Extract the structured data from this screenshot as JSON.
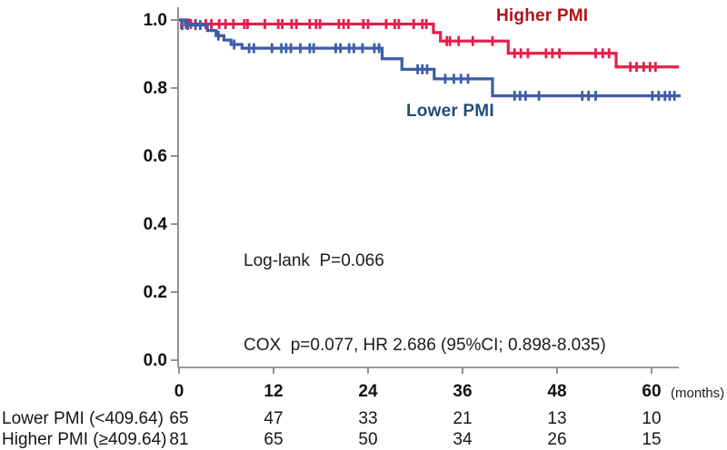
{
  "chart_data": {
    "type": "line",
    "subtype": "kaplan_meier_step_curves",
    "title": "",
    "xlabel": "(months)",
    "ylabel": "",
    "grid": false,
    "axis_color": "#7a7a7a",
    "tick_label_color": "#111111",
    "x_axis": {
      "ticks": [
        0,
        12,
        24,
        36,
        48,
        60
      ],
      "range": [
        0,
        63.5
      ]
    },
    "y_axis": {
      "ticks": [
        1.0,
        0.8,
        0.6,
        0.4,
        0.2,
        0.0
      ],
      "tick_labels": [
        "1.0",
        "0.8",
        "0.6",
        "0.4",
        "0.2",
        "0.0"
      ],
      "range": [
        0.0,
        1.0
      ]
    },
    "annotations": {
      "line1": "Log-lank  P=0.066",
      "line2": "COX  p=0.077, HR 2.686 (95%CI; 0.898-8.035)"
    },
    "series": [
      {
        "name": "Higher PMI",
        "curve_color": "#E3204C",
        "label_color": "#B11318",
        "end_t": 63.5,
        "steps": [
          [
            0,
            1.0
          ],
          [
            1.2,
            0.988
          ],
          [
            32.3,
            0.963
          ],
          [
            33.2,
            0.938
          ],
          [
            41.8,
            0.902
          ],
          [
            55.5,
            0.862
          ]
        ],
        "censors": [
          [
            0.3,
            0.988
          ],
          [
            0.9,
            0.988
          ],
          [
            1.5,
            0.988
          ],
          [
            2.1,
            0.988
          ],
          [
            3.4,
            0.988
          ],
          [
            4.1,
            0.988
          ],
          [
            5.1,
            0.988
          ],
          [
            5.9,
            0.988
          ],
          [
            6.9,
            0.988
          ],
          [
            8.3,
            0.988
          ],
          [
            8.7,
            0.988
          ],
          [
            10.9,
            0.988
          ],
          [
            12.6,
            0.988
          ],
          [
            13.1,
            0.988
          ],
          [
            14.3,
            0.988
          ],
          [
            14.9,
            0.988
          ],
          [
            16.6,
            0.988
          ],
          [
            17.4,
            0.988
          ],
          [
            17.9,
            0.988
          ],
          [
            20.3,
            0.988
          ],
          [
            20.9,
            0.988
          ],
          [
            21.5,
            0.988
          ],
          [
            23.4,
            0.988
          ],
          [
            24.0,
            0.988
          ],
          [
            26.3,
            0.988
          ],
          [
            27.4,
            0.988
          ],
          [
            27.9,
            0.988
          ],
          [
            29.8,
            0.988
          ],
          [
            30.9,
            0.988
          ],
          [
            31.4,
            0.988
          ],
          [
            34.0,
            0.938
          ],
          [
            34.4,
            0.938
          ],
          [
            35.5,
            0.938
          ],
          [
            37.3,
            0.938
          ],
          [
            39.8,
            0.938
          ],
          [
            42.6,
            0.902
          ],
          [
            43.4,
            0.902
          ],
          [
            44.3,
            0.902
          ],
          [
            46.6,
            0.902
          ],
          [
            47.4,
            0.902
          ],
          [
            48.3,
            0.902
          ],
          [
            52.9,
            0.902
          ],
          [
            53.8,
            0.902
          ],
          [
            54.6,
            0.902
          ],
          [
            57.3,
            0.862
          ],
          [
            58.1,
            0.862
          ],
          [
            59.0,
            0.862
          ],
          [
            59.8,
            0.862
          ],
          [
            60.5,
            0.862
          ]
        ]
      },
      {
        "name": "Lower PMI",
        "curve_color": "#3D5DAA",
        "label_color": "#1F4E79",
        "end_t": 63.7,
        "steps": [
          [
            0,
            1.0
          ],
          [
            0.8,
            0.985
          ],
          [
            3.6,
            0.969
          ],
          [
            4.7,
            0.954
          ],
          [
            5.7,
            0.941
          ],
          [
            6.6,
            0.928
          ],
          [
            8.0,
            0.917
          ],
          [
            25.8,
            0.886
          ],
          [
            28.3,
            0.855
          ],
          [
            32.4,
            0.827
          ],
          [
            39.8,
            0.777
          ]
        ],
        "censors": [
          [
            0.4,
            0.985
          ],
          [
            1.1,
            0.985
          ],
          [
            2.1,
            0.985
          ],
          [
            2.7,
            0.985
          ],
          [
            5.0,
            0.954
          ],
          [
            7.0,
            0.928
          ],
          [
            8.9,
            0.917
          ],
          [
            9.5,
            0.917
          ],
          [
            11.8,
            0.917
          ],
          [
            13.0,
            0.917
          ],
          [
            13.6,
            0.917
          ],
          [
            14.2,
            0.917
          ],
          [
            15.4,
            0.917
          ],
          [
            16.6,
            0.917
          ],
          [
            17.1,
            0.917
          ],
          [
            19.9,
            0.917
          ],
          [
            20.5,
            0.917
          ],
          [
            21.6,
            0.917
          ],
          [
            22.2,
            0.917
          ],
          [
            23.3,
            0.917
          ],
          [
            24.8,
            0.917
          ],
          [
            25.4,
            0.917
          ],
          [
            30.3,
            0.855
          ],
          [
            30.9,
            0.855
          ],
          [
            31.5,
            0.855
          ],
          [
            33.8,
            0.827
          ],
          [
            34.9,
            0.827
          ],
          [
            35.8,
            0.827
          ],
          [
            36.7,
            0.827
          ],
          [
            42.6,
            0.777
          ],
          [
            43.3,
            0.777
          ],
          [
            44.0,
            0.777
          ],
          [
            45.7,
            0.777
          ],
          [
            51.2,
            0.777
          ],
          [
            52.0,
            0.777
          ],
          [
            52.9,
            0.777
          ],
          [
            60.1,
            0.777
          ],
          [
            60.9,
            0.777
          ],
          [
            61.7,
            0.777
          ],
          [
            62.3,
            0.777
          ],
          [
            62.9,
            0.777
          ]
        ]
      }
    ]
  },
  "risk_table": {
    "cols_months": [
      0,
      12,
      24,
      36,
      48,
      60
    ],
    "rows": [
      {
        "label": "Lower PMI (<409.64)",
        "values": [
          "65",
          "47",
          "33",
          "21",
          "13",
          "10"
        ]
      },
      {
        "label": "Higher PMI (≥409.64)",
        "values": [
          "81",
          "65",
          "50",
          "34",
          "26",
          "15"
        ]
      }
    ]
  }
}
